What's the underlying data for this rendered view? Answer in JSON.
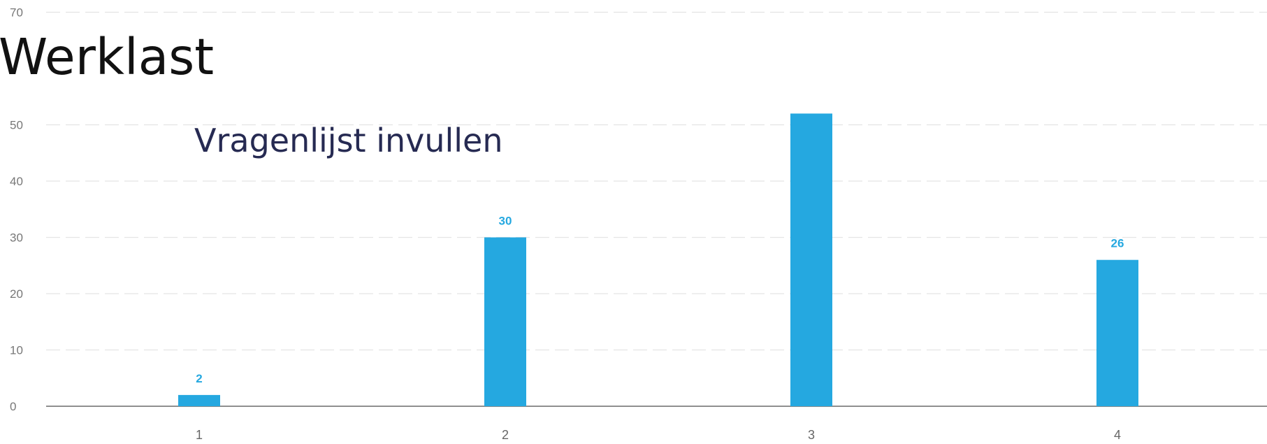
{
  "chart_data": {
    "type": "bar",
    "title": "Werklast",
    "subtitle": "Vragenlijst invullen",
    "xlabel": "",
    "ylabel": "",
    "categories": [
      "1",
      "2",
      "3",
      "4"
    ],
    "values": [
      2,
      30,
      52,
      26
    ],
    "data_labels": [
      "2",
      "30",
      "",
      "26"
    ],
    "ylim": [
      0,
      70
    ],
    "y_ticks": [
      0,
      10,
      20,
      30,
      40,
      50,
      70
    ],
    "grid": true,
    "legend": "none",
    "colors": {
      "bar": "#25a8e0",
      "label": "#25a8e0"
    }
  }
}
